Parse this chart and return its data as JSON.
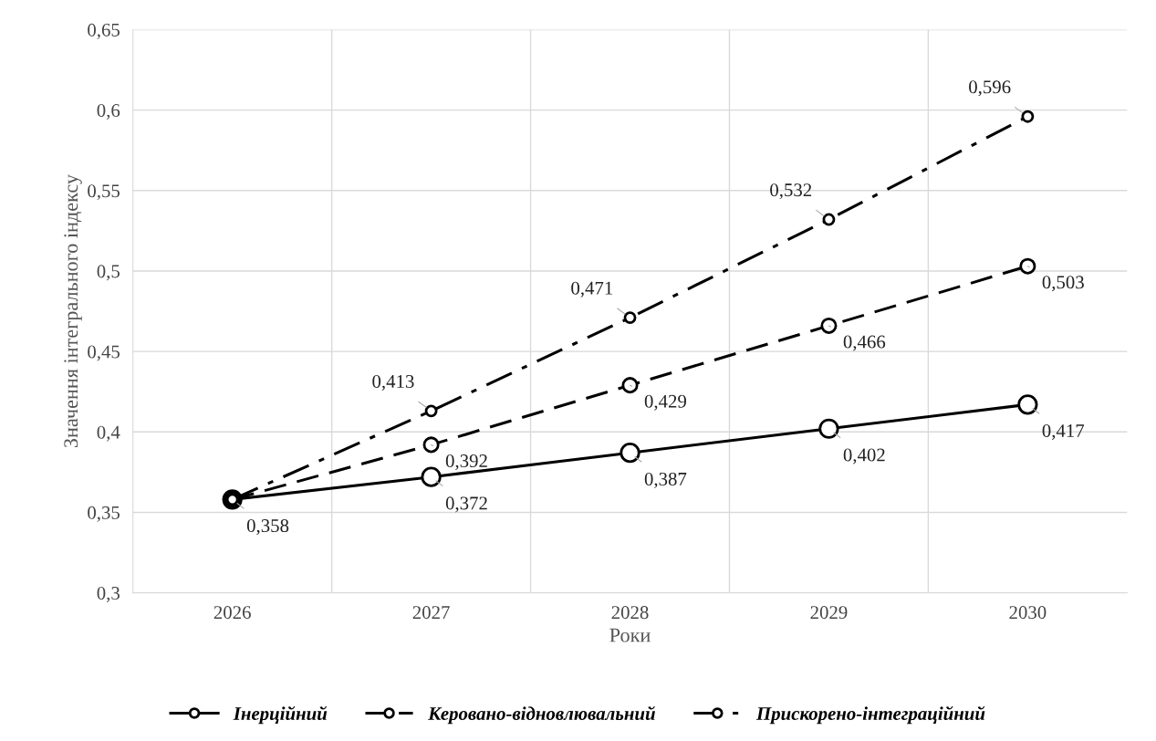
{
  "chart_data": {
    "type": "line",
    "xlabel": "Роки",
    "ylabel": "Значення інтегрального індексу",
    "categories": [
      "2026",
      "2027",
      "2028",
      "2029",
      "2030"
    ],
    "series": [
      {
        "name": "Інерційний",
        "color": "#000000",
        "line_style": "solid",
        "values": [
          0.358,
          0.372,
          0.387,
          0.402,
          0.417
        ],
        "value_labels": [
          "0,358",
          "0,372",
          "0,387",
          "0,402",
          "0,417"
        ]
      },
      {
        "name": "Керовано-відновлювальний",
        "color": "#000000",
        "line_style": "dashed",
        "values": [
          0.358,
          0.392,
          0.429,
          0.466,
          0.503
        ],
        "value_labels": [
          null,
          "0,392",
          "0,429",
          "0,466",
          "0,503"
        ]
      },
      {
        "name": "Прискорено-інтеграційний",
        "color": "#000000",
        "line_style": "dashdot",
        "values": [
          0.358,
          0.413,
          0.471,
          0.532,
          0.596
        ],
        "value_labels": [
          null,
          "0,413",
          "0,471",
          "0,532",
          "0,596"
        ]
      }
    ],
    "ylim": [
      0.3,
      0.65
    ],
    "yticks": [
      {
        "value": 0.3,
        "label": "0,3"
      },
      {
        "value": 0.35,
        "label": "0,35"
      },
      {
        "value": 0.4,
        "label": "0,4"
      },
      {
        "value": 0.45,
        "label": "0,45"
      },
      {
        "value": 0.5,
        "label": "0,5"
      },
      {
        "value": 0.55,
        "label": "0,55"
      },
      {
        "value": 0.6,
        "label": "0,6"
      },
      {
        "value": 0.65,
        "label": "0,65"
      }
    ],
    "grid": true,
    "legend": "bottom",
    "marker": "circle"
  }
}
